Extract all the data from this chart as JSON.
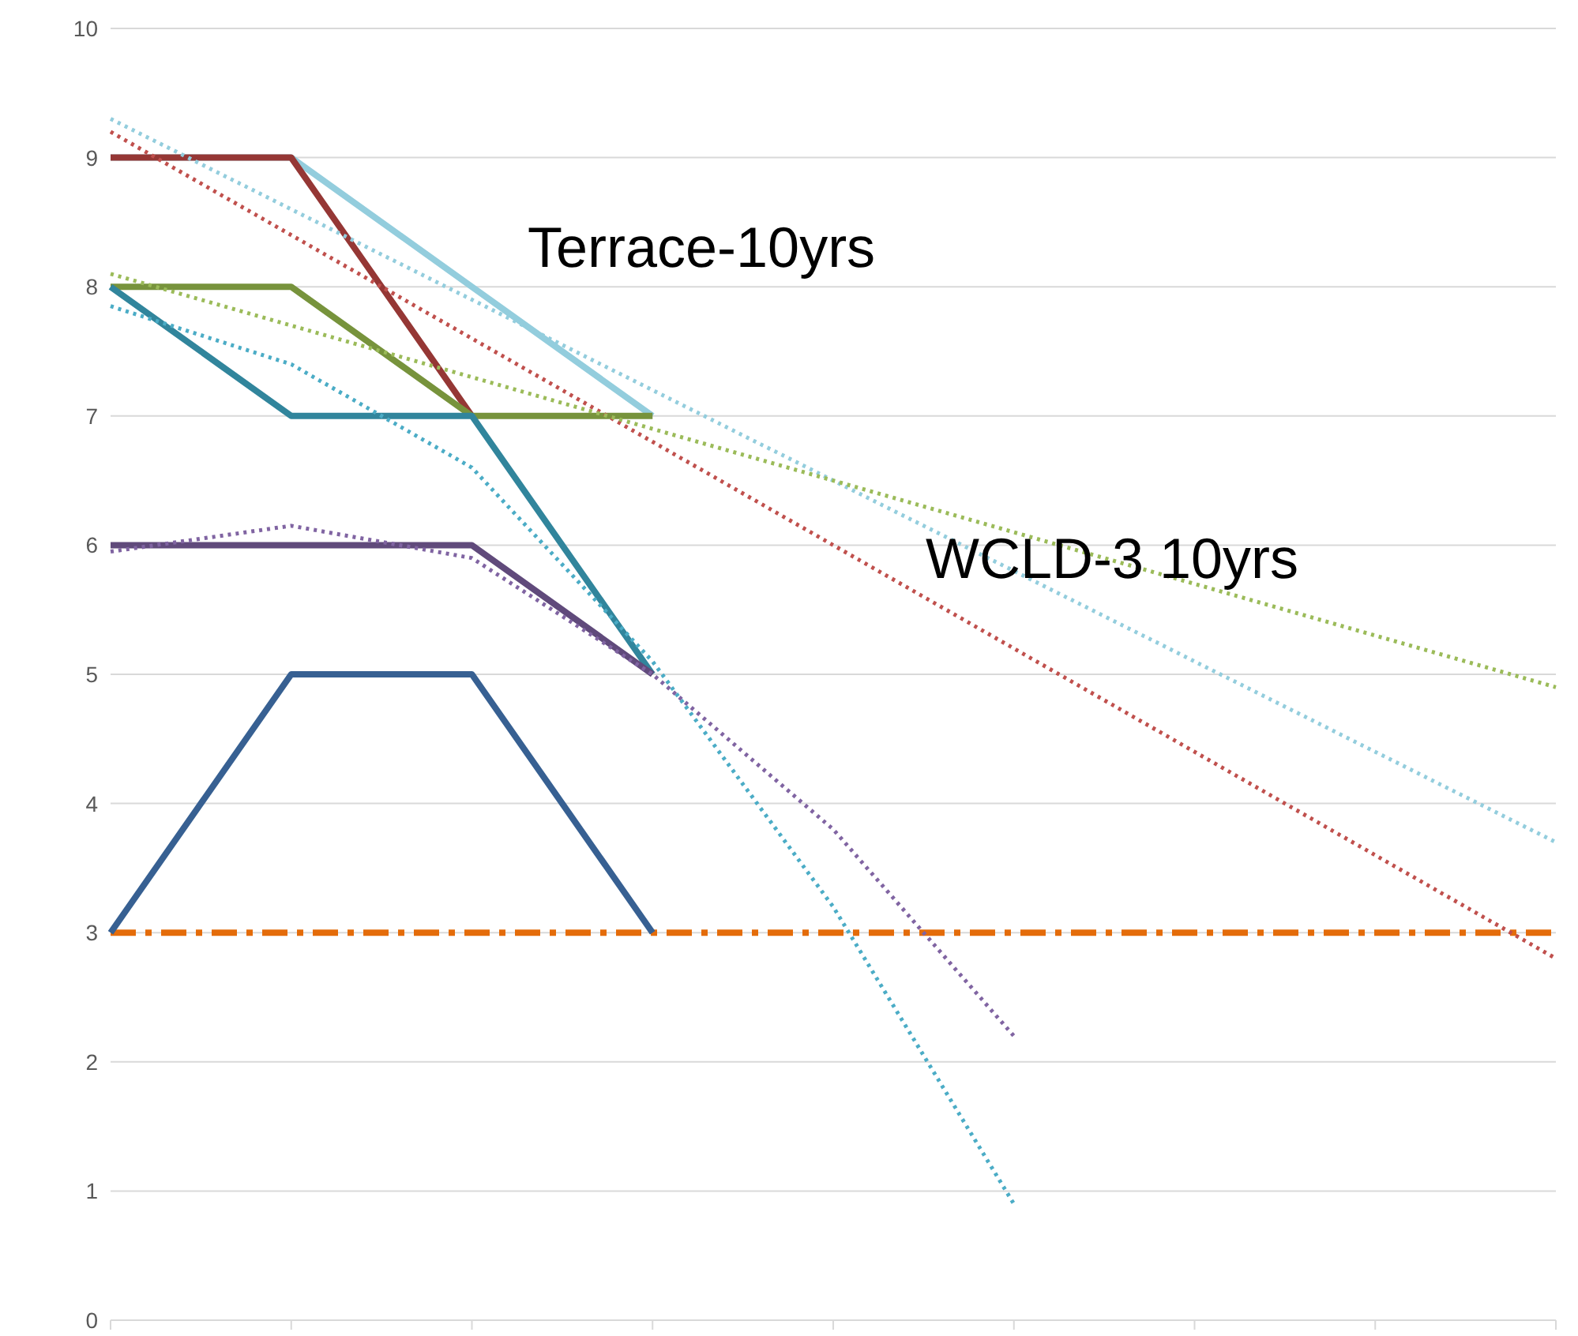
{
  "chart_data": {
    "type": "line",
    "categories": [
      null,
      null,
      null,
      null,
      null,
      null,
      null,
      null,
      null
    ],
    "series": [
      {
        "color": "#e46c0a",
        "line_style": "dashed",
        "values": [
          3,
          3,
          3,
          3,
          3,
          3,
          3,
          3,
          3
        ]
      },
      {
        "color": "#93cddd",
        "values": [
          9,
          9,
          8,
          7,
          null,
          null,
          null,
          null,
          null
        ]
      },
      {
        "color": "#953735",
        "values": [
          9,
          9,
          7,
          null,
          null,
          null,
          null,
          null,
          null
        ]
      },
      {
        "color": "#77933c",
        "values": [
          8,
          8,
          7,
          7,
          null,
          null,
          null,
          null,
          null
        ]
      },
      {
        "color": "#31859c",
        "values": [
          8,
          7,
          7,
          5,
          null,
          null,
          null,
          null,
          null
        ]
      },
      {
        "color": "#604a7b",
        "values": [
          6,
          6,
          6,
          5,
          null,
          null,
          null,
          null,
          null
        ]
      },
      {
        "color": "#376092",
        "values": [
          3,
          5,
          5,
          3,
          null,
          null,
          null,
          null,
          null
        ]
      },
      {
        "color": "#c0504d",
        "line_style": "dotted",
        "values": [
          9.2,
          8.4,
          7.6,
          6.8,
          6.0,
          5.2,
          4.4,
          3.6,
          2.8
        ]
      },
      {
        "color": "#93cddd",
        "line_style": "dotted",
        "values": [
          9.3,
          8.6,
          7.9,
          7.2,
          6.5,
          5.8,
          5.1,
          4.4,
          3.7
        ]
      },
      {
        "color": "#9bbb59",
        "line_style": "dotted",
        "values": [
          8.1,
          7.7,
          7.3,
          6.9,
          6.5,
          6.1,
          5.7,
          5.3,
          4.9
        ]
      },
      {
        "color": "#4bacc6",
        "line_style": "dotted",
        "values": [
          7.85,
          7.4,
          6.6,
          5.1,
          3.2,
          0.9,
          null,
          null,
          null
        ]
      },
      {
        "color": "#8064a2",
        "line_style": "dotted",
        "values": [
          5.95,
          6.15,
          5.9,
          5.0,
          3.8,
          2.2,
          null,
          null,
          null
        ]
      }
    ],
    "ylim": [
      0,
      10
    ],
    "yticks": [
      0,
      1,
      2,
      3,
      4,
      5,
      6,
      7,
      8,
      9,
      10
    ],
    "grid": "y",
    "tick_labels": "y",
    "marker": "none",
    "line_style": "solid",
    "annotations": [
      "Terrace-10yrs",
      "WCLD-3 10yrs"
    ]
  }
}
